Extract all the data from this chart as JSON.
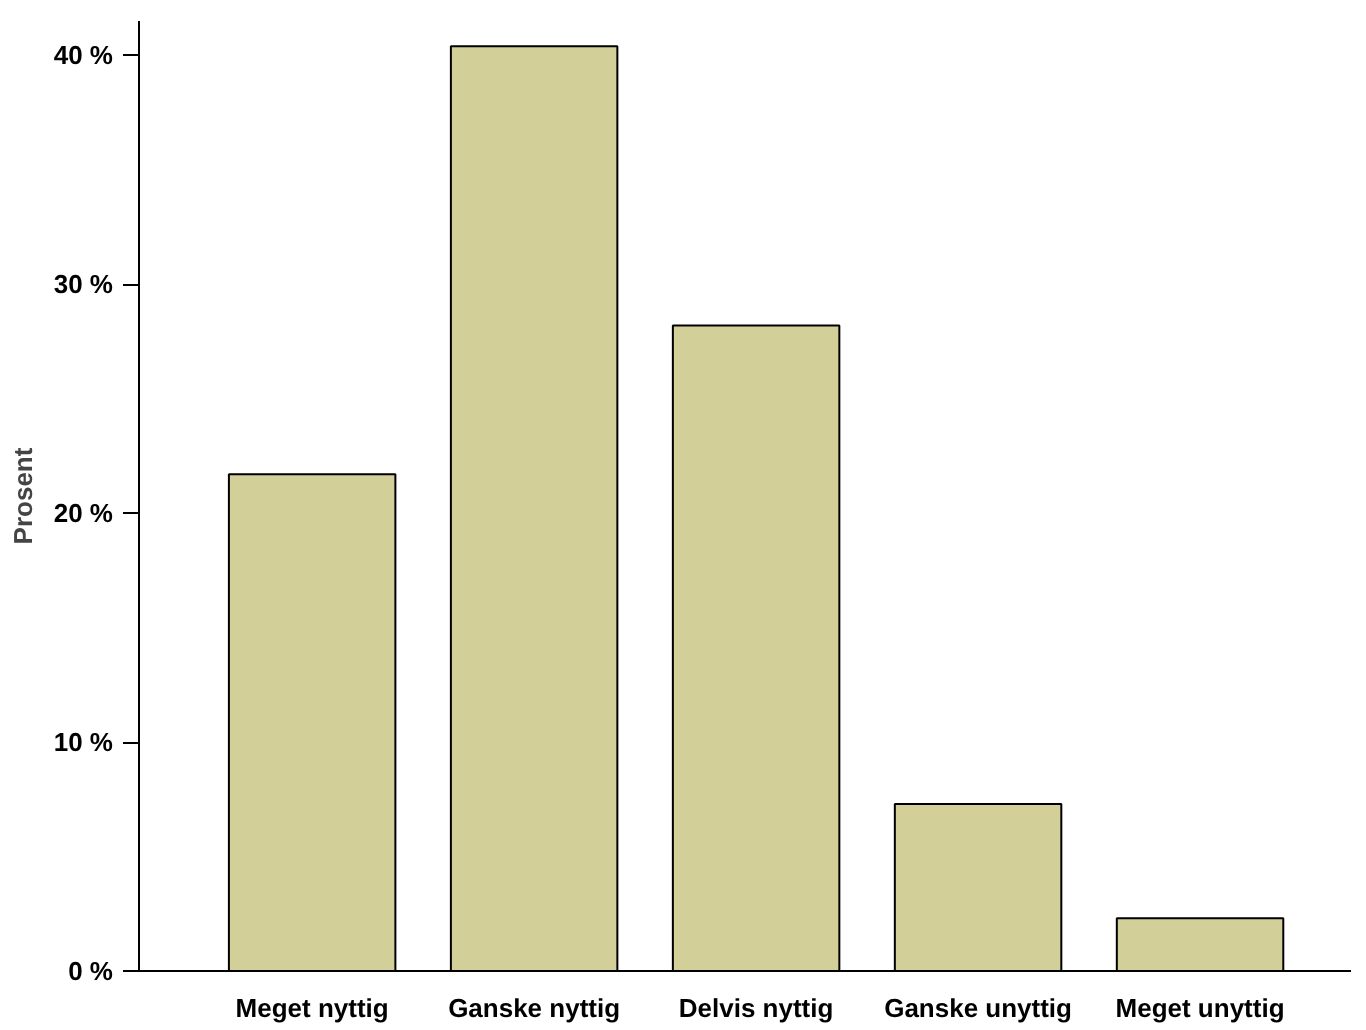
{
  "chart_data": {
    "type": "bar",
    "ylabel": "Prosent",
    "categories": [
      "Meget nyttig",
      "Ganske nyttig",
      "Delvis nyttig",
      "Ganske unyttig",
      "Meget unyttig"
    ],
    "values": [
      21.7,
      40.4,
      28.2,
      7.3,
      2.3
    ],
    "color": "#d3cf98",
    "ylim": [
      0,
      41.5
    ],
    "yticks": [
      {
        "value": 0,
        "label": "0 %"
      },
      {
        "value": 10,
        "label": "10 %"
      },
      {
        "value": 20,
        "label": "20 %"
      },
      {
        "value": 30,
        "label": "30 %"
      },
      {
        "value": 40,
        "label": "40 %"
      }
    ],
    "grid": false
  }
}
